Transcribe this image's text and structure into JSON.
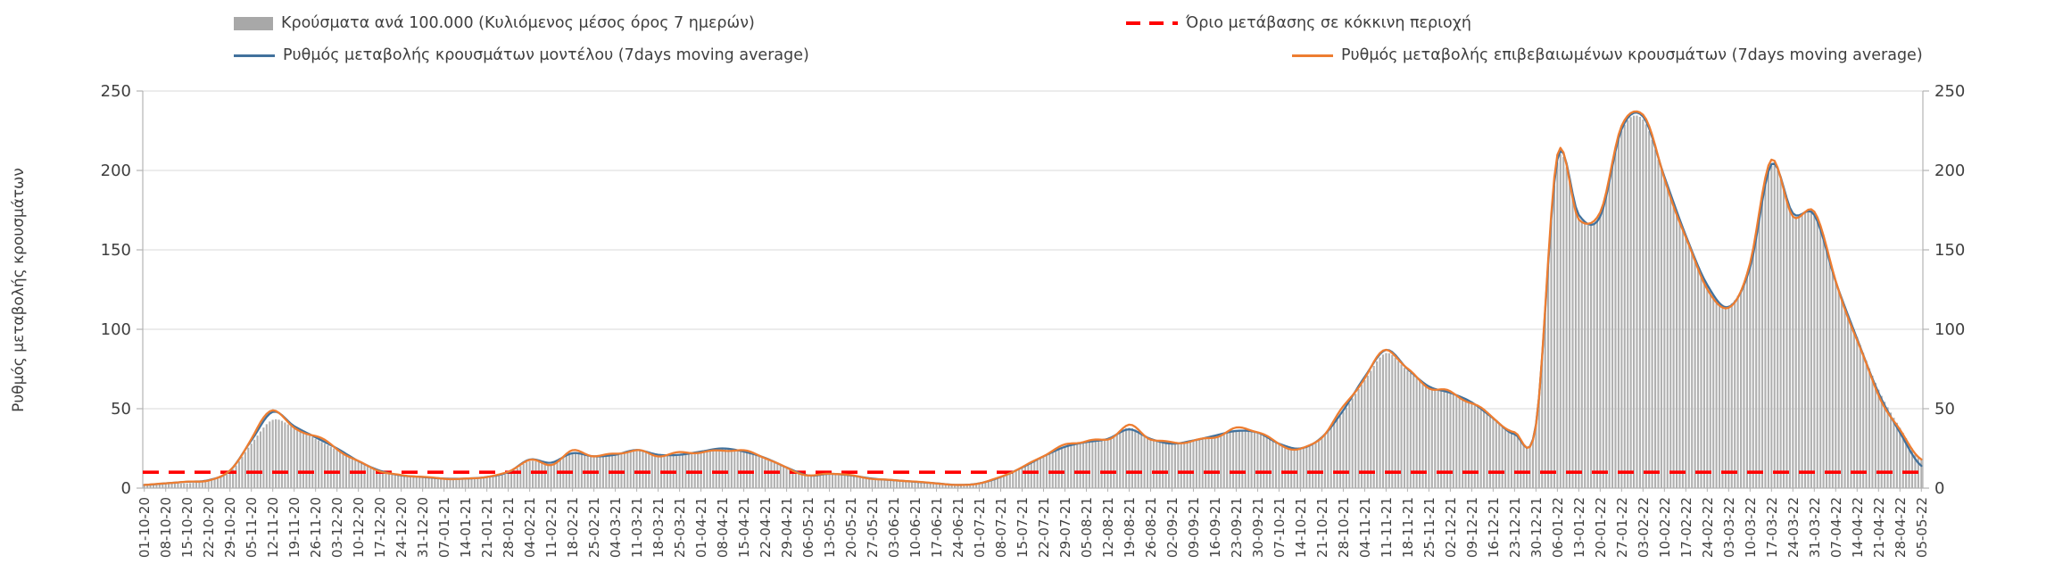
{
  "legend": {
    "bars": "Κρούσματα ανά 100.000 (Κυλιόμενος μέσος όρος 7 ημερών)",
    "threshold": "Όριο μετάβασης σε κόκκινη περιοχή",
    "model": "Ρυθμός μεταβολής κρουσμάτων μοντέλου (7days moving average)",
    "confirmed": "Ρυθμός μεταβολής επιβεβαιωμένων κρουσμάτων (7days moving average)"
  },
  "y_axis": {
    "title": "Ρυθμός μεταβολής κρουσμάτων",
    "ticks": [
      0,
      50,
      100,
      150,
      200,
      250
    ]
  },
  "colors": {
    "bar": "#b0b0b0",
    "model_line": "#41719c",
    "confirmed_line": "#ed7d31",
    "threshold_line": "#ff0000",
    "grid": "#d9d9d9",
    "axis": "#b3b3b3",
    "text": "#3f3f3f"
  },
  "chart_data": {
    "type": "combo",
    "title": "",
    "legend_position": "top",
    "grid": "horizontal",
    "ylim": [
      0,
      250
    ],
    "y_ticks": [
      0,
      50,
      100,
      150,
      200,
      250
    ],
    "threshold": 10,
    "threshold_name": "Όριο μετάβασης σε κόκκινη περιοχή",
    "sampling": "values are 7-day moving averages sampled at the weekly tick dates; plotted data is daily",
    "categories": [
      "01-10-20",
      "08-10-20",
      "15-10-20",
      "22-10-20",
      "29-10-20",
      "05-11-20",
      "12-11-20",
      "19-11-20",
      "26-11-20",
      "03-12-20",
      "10-12-20",
      "17-12-20",
      "24-12-20",
      "31-12-20",
      "07-01-21",
      "14-01-21",
      "21-01-21",
      "28-01-21",
      "04-02-21",
      "11-02-21",
      "18-02-21",
      "25-02-21",
      "04-03-21",
      "11-03-21",
      "18-03-21",
      "25-03-21",
      "01-04-21",
      "08-04-21",
      "15-04-21",
      "22-04-21",
      "29-04-21",
      "06-05-21",
      "13-05-21",
      "20-05-21",
      "27-05-21",
      "03-06-21",
      "10-06-21",
      "17-06-21",
      "24-06-21",
      "01-07-21",
      "08-07-21",
      "15-07-21",
      "22-07-21",
      "29-07-21",
      "05-08-21",
      "12-08-21",
      "19-08-21",
      "26-08-21",
      "02-09-21",
      "09-09-21",
      "16-09-21",
      "23-09-21",
      "30-09-21",
      "07-10-21",
      "14-10-21",
      "21-10-21",
      "28-10-21",
      "04-11-21",
      "11-11-21",
      "18-11-21",
      "25-11-21",
      "02-12-21",
      "09-12-21",
      "16-12-21",
      "23-12-21",
      "30-12-21",
      "06-01-22",
      "13-01-22",
      "20-01-22",
      "27-01-22",
      "03-02-22",
      "10-02-22",
      "17-02-22",
      "24-02-22",
      "03-03-22",
      "10-03-22",
      "17-03-22",
      "24-03-22",
      "31-03-22",
      "07-04-22",
      "14-04-22",
      "21-04-22",
      "28-04-22",
      "05-05-22"
    ],
    "series": [
      {
        "id": "cases",
        "name": "Κρούσματα ανά 100.000 (Κυλιόμενος μέσος όρος 7 ημερών)",
        "type": "bar",
        "color": "#b0b0b0",
        "values": [
          2,
          3,
          3,
          5,
          10,
          28,
          43,
          38,
          31,
          24,
          17,
          11,
          8,
          7,
          6,
          6,
          7,
          9,
          17,
          15,
          22,
          20,
          21,
          24,
          20,
          21,
          23,
          25,
          23,
          19,
          13,
          8,
          9,
          8,
          6,
          5,
          4,
          3,
          2,
          3,
          7,
          13,
          20,
          26,
          29,
          31,
          38,
          31,
          28,
          30,
          33,
          36,
          35,
          28,
          25,
          32,
          48,
          68,
          85,
          74,
          64,
          60,
          54,
          44,
          34,
          40,
          205,
          170,
          172,
          225,
          232,
          195,
          158,
          128,
          115,
          140,
          203,
          172,
          173,
          130,
          95,
          62,
          38,
          18
        ]
      },
      {
        "id": "model",
        "name": "Ρυθμός μεταβολής κρουσμάτων μοντέλου (7days moving average)",
        "type": "line",
        "color": "#41719c",
        "values": [
          2,
          3,
          4,
          5,
          11,
          30,
          48,
          39,
          32,
          25,
          17,
          11,
          8,
          7,
          6,
          6,
          7,
          10,
          18,
          16,
          22,
          20,
          21,
          24,
          21,
          21,
          23,
          25,
          23,
          19,
          13,
          8,
          9,
          8,
          6,
          5,
          4,
          3,
          2,
          3,
          7,
          13,
          20,
          26,
          29,
          31,
          37,
          31,
          28,
          30,
          33,
          36,
          35,
          28,
          25,
          32,
          49,
          70,
          87,
          75,
          64,
          60,
          54,
          44,
          34,
          40,
          207,
          172,
          171,
          226,
          234,
          196,
          159,
          128,
          114,
          139,
          204,
          173,
          172,
          130,
          94,
          60,
          35,
          14
        ]
      },
      {
        "id": "confirmed",
        "name": "Ρυθμός μεταβολής επιβεβαιωμένων κρουσμάτων (7days moving average)",
        "type": "line",
        "color": "#ed7d31",
        "values": [
          2,
          3,
          4,
          5,
          11,
          30,
          50,
          38,
          33,
          24,
          17,
          11,
          8,
          7,
          6,
          6,
          7,
          10,
          18,
          15,
          23,
          20,
          22,
          24,
          20,
          22,
          23,
          24,
          23,
          19,
          13,
          8,
          9,
          8,
          6,
          5,
          4,
          3,
          2,
          3,
          7,
          13,
          21,
          27,
          29,
          31,
          40,
          31,
          28,
          30,
          33,
          37,
          35,
          28,
          25,
          32,
          50,
          70,
          88,
          74,
          63,
          61,
          54,
          44,
          34,
          41,
          210,
          168,
          174,
          228,
          236,
          194,
          157,
          127,
          113,
          141,
          207,
          171,
          175,
          129,
          93,
          60,
          36,
          18
        ]
      }
    ]
  }
}
